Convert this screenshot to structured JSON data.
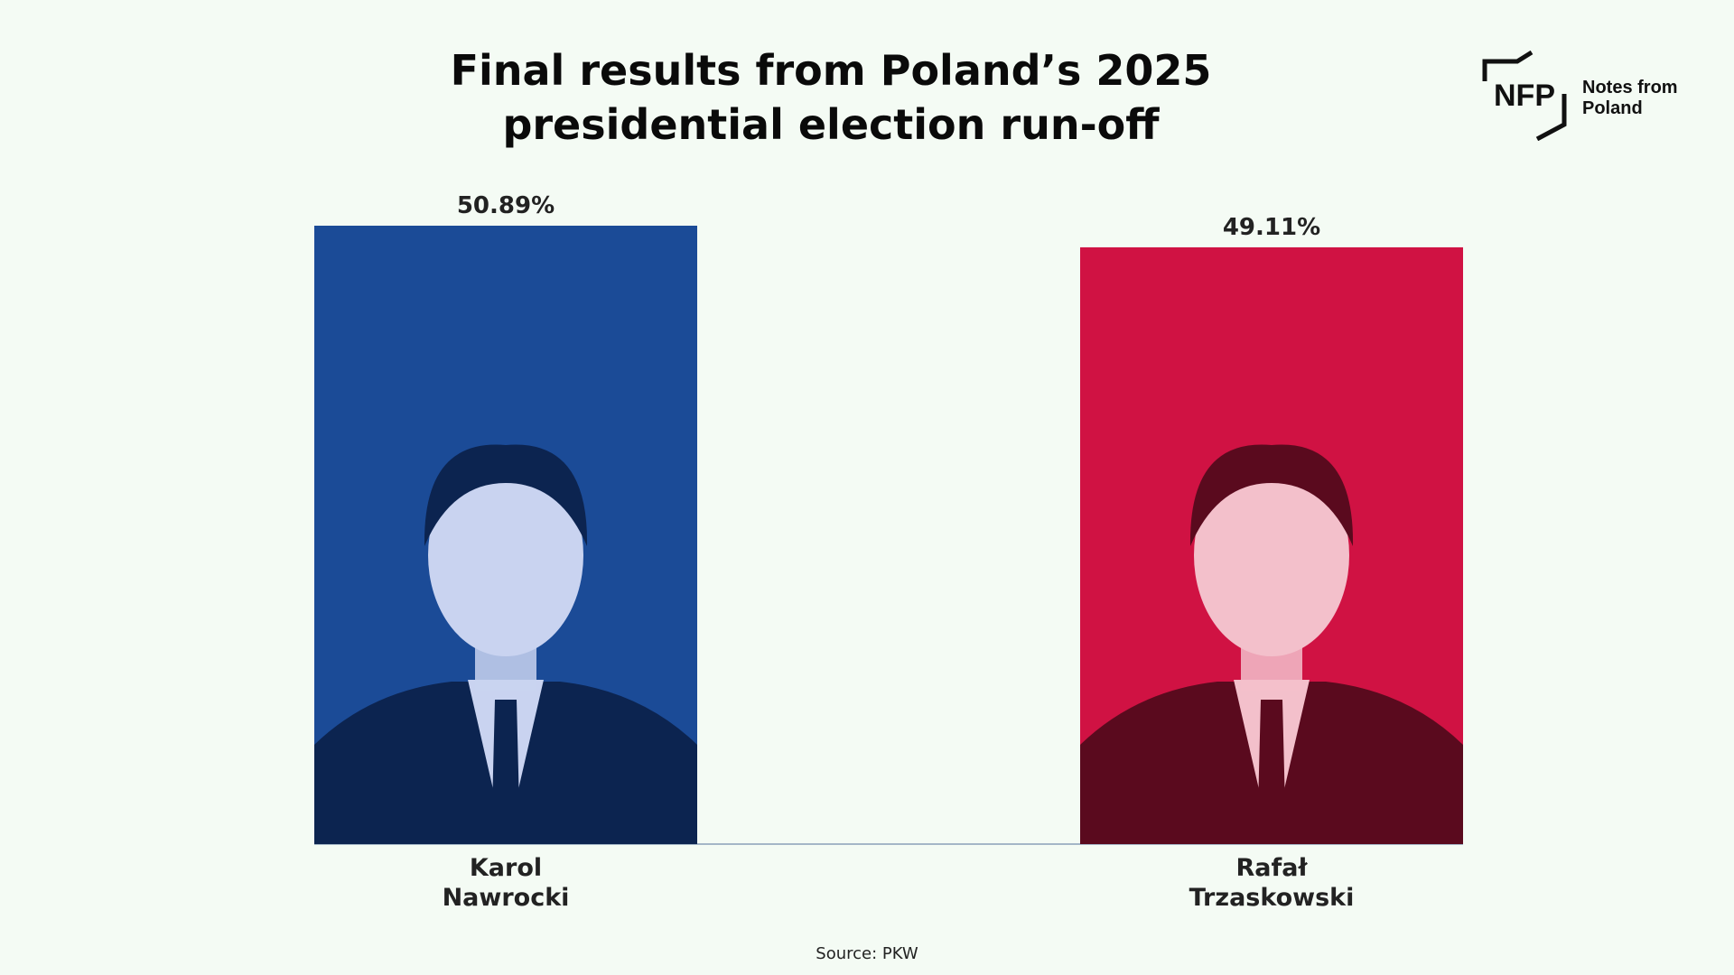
{
  "header": {
    "title_line1": "Final results from Poland’s 2025",
    "title_line2": "presidential election run-off"
  },
  "logo": {
    "mark": "NFP",
    "line1": "Notes from",
    "line2": "Poland"
  },
  "source": "Source: PKW",
  "chart_data": {
    "type": "bar",
    "title": "Final results from Poland’s 2025 presidential election run-off",
    "categories": [
      "Karol Nawrocki",
      "Rafał Trzaskowski"
    ],
    "category_lines": [
      [
        "Karol",
        "Nawrocki"
      ],
      [
        "Rafał",
        "Trzaskowski"
      ]
    ],
    "values": [
      50.89,
      49.11
    ],
    "value_labels": [
      "50.89%",
      "49.11%"
    ],
    "unit": "%",
    "colors": [
      "#1b4b97",
      "#d01243"
    ],
    "portrait_icons": [
      "portrait-karol-nawrocki",
      "portrait-rafal-trzaskowski"
    ],
    "ylim": [
      0,
      50.89
    ],
    "grid": false,
    "legend": "none",
    "xlabel": "",
    "ylabel": ""
  }
}
